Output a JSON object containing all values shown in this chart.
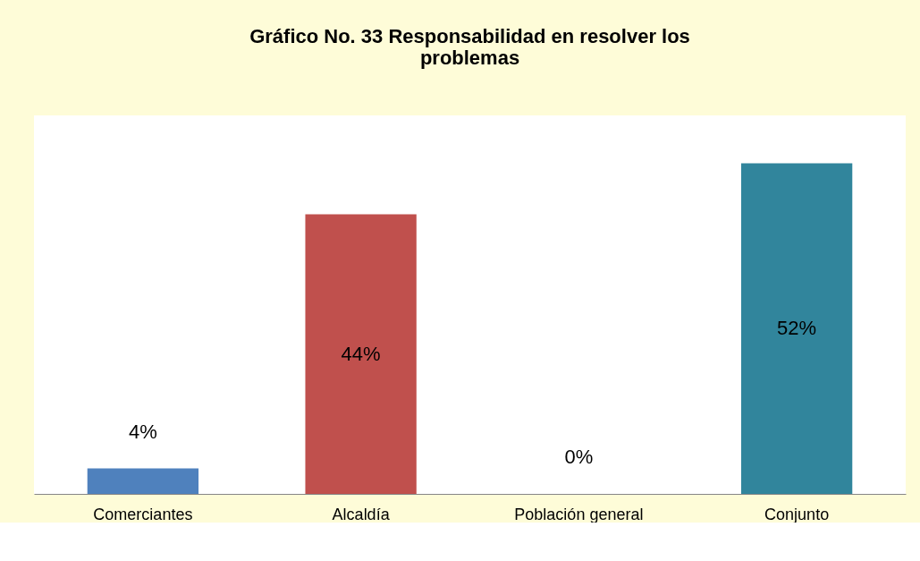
{
  "chart_data": {
    "type": "bar",
    "title": "Gráfico No. 33  Responsabilidad en resolver los problemas",
    "categories": [
      "Comerciantes",
      "Alcaldía",
      "Población general",
      "Conjunto"
    ],
    "values": [
      4,
      44,
      0,
      52
    ],
    "colors": [
      "#4f81bd",
      "#c0504d",
      "#9bbb59",
      "#31859c"
    ],
    "value_labels": [
      "4%",
      "44%",
      "0%",
      "52%"
    ],
    "grid": false,
    "legend": false
  }
}
